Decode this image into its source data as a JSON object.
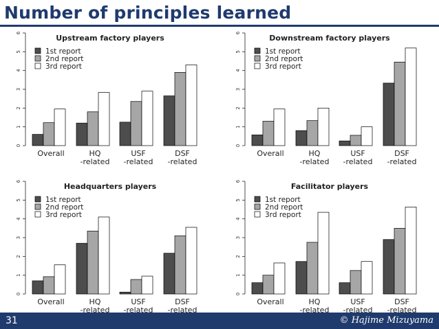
{
  "slide": {
    "title": "Number of principles learned",
    "page_number": "31",
    "copyright": "© Hajime Mizuyama"
  },
  "colors": {
    "brand": "#1f3a6d",
    "series": [
      "#4d4d4d",
      "#a6a6a6",
      "#ffffff"
    ],
    "bar_stroke": "#000000"
  },
  "chart_data": [
    {
      "type": "bar",
      "title": "Upstream factory players",
      "categories": [
        [
          "Overall"
        ],
        [
          "HQ",
          "-related"
        ],
        [
          "USF",
          "-related"
        ],
        [
          "DSF",
          "-related"
        ]
      ],
      "series": [
        {
          "name": "1st report",
          "values": [
            0.6,
            1.2,
            1.25,
            2.65
          ]
        },
        {
          "name": "2nd report",
          "values": [
            1.22,
            1.8,
            2.35,
            3.9
          ]
        },
        {
          "name": "3rd report",
          "values": [
            1.95,
            2.83,
            2.9,
            4.3
          ]
        }
      ],
      "yticks": [
        "0",
        "1",
        "2",
        "3",
        "4",
        "5",
        "6"
      ],
      "ylim": [
        0,
        6
      ],
      "legend": "top-left",
      "grid": false
    },
    {
      "type": "bar",
      "title": "Downstream factory players",
      "categories": [
        [
          "Overall"
        ],
        [
          "HQ",
          "-related"
        ],
        [
          "USF",
          "-related"
        ],
        [
          "DSF",
          "-related"
        ]
      ],
      "series": [
        {
          "name": "1st report",
          "values": [
            0.57,
            0.8,
            0.25,
            3.33
          ]
        },
        {
          "name": "2nd report",
          "values": [
            1.3,
            1.33,
            0.55,
            4.45
          ]
        },
        {
          "name": "3rd report",
          "values": [
            1.95,
            2.0,
            1.0,
            5.2
          ]
        }
      ],
      "yticks": [
        "0",
        "1",
        "2",
        "3",
        "4",
        "5",
        "6"
      ],
      "ylim": [
        0,
        6
      ],
      "legend": "top-left",
      "grid": false
    },
    {
      "type": "bar",
      "title": "Headquarters players",
      "categories": [
        [
          "Overall"
        ],
        [
          "HQ",
          "-related"
        ],
        [
          "USF",
          "-related"
        ],
        [
          "DSF",
          "-related"
        ]
      ],
      "series": [
        {
          "name": "1st report",
          "values": [
            0.7,
            2.7,
            0.1,
            2.17
          ]
        },
        {
          "name": "2nd report",
          "values": [
            0.92,
            3.35,
            0.77,
            3.1
          ]
        },
        {
          "name": "3rd report",
          "values": [
            1.55,
            4.1,
            0.95,
            3.55
          ]
        }
      ],
      "yticks": [
        "0",
        "1",
        "2",
        "3",
        "4",
        "5",
        "6"
      ],
      "ylim": [
        0,
        6
      ],
      "legend": "top-left",
      "grid": false
    },
    {
      "type": "bar",
      "title": "Facilitator players",
      "categories": [
        [
          "Overall"
        ],
        [
          "HQ",
          "-related"
        ],
        [
          "USF",
          "-related"
        ],
        [
          "DSF",
          "-related"
        ]
      ],
      "series": [
        {
          "name": "1st report",
          "values": [
            0.6,
            1.73,
            0.6,
            2.9
          ]
        },
        {
          "name": "2nd report",
          "values": [
            1.0,
            2.75,
            1.25,
            3.5
          ]
        },
        {
          "name": "3rd report",
          "values": [
            1.65,
            4.35,
            1.73,
            4.63
          ]
        }
      ],
      "yticks": [
        "0",
        "1",
        "2",
        "3",
        "4",
        "5",
        "6"
      ],
      "ylim": [
        0,
        6
      ],
      "legend": "top-left",
      "grid": false
    }
  ]
}
